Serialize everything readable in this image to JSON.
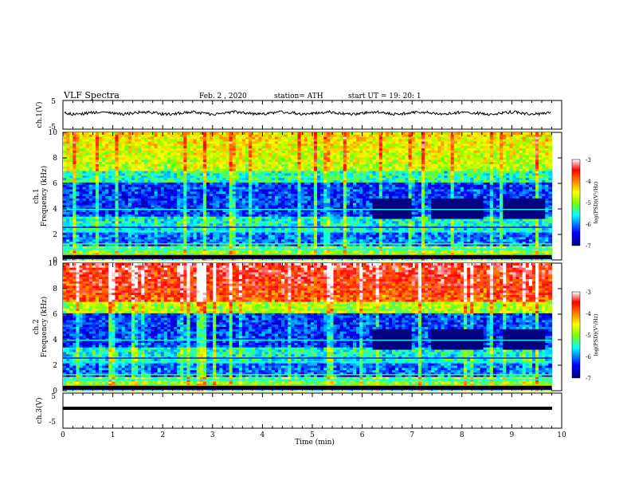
{
  "header": {
    "title": "VLF  Spectra",
    "date": "Feb. 2  , 2020",
    "station": "station= ATH",
    "start": "start  UT  =    19: 20: 1"
  },
  "chart_data": [
    {
      "type": "line",
      "panel": "ch1-waveform",
      "ylabel": "ch.1(V)",
      "ylim": [
        -5,
        5
      ],
      "yticks": [
        "5",
        "-5"
      ],
      "xlim": [
        0,
        10
      ],
      "series": [
        {
          "mean_v": 0.6,
          "noise_v": 0.6
        }
      ]
    },
    {
      "type": "heatmap",
      "panel": "ch1-spectrogram",
      "ylabel": "ch.1\nFrequency (kHz)",
      "ylim": [
        0,
        10
      ],
      "yticks": [
        "0",
        "2",
        "4",
        "6",
        "8",
        "10"
      ],
      "xlim": [
        0,
        9.8
      ],
      "colorbar": {
        "label": "log(PSD)(V²/Hz)",
        "range": [
          -7,
          -3
        ],
        "ticks": [
          "-3",
          "-4",
          "-5",
          "-6",
          "-7"
        ]
      },
      "dark_blocks_min": [
        [
          6.2,
          7.0
        ],
        [
          7.4,
          8.4
        ],
        [
          8.8,
          9.7
        ]
      ]
    },
    {
      "type": "heatmap",
      "panel": "ch2-spectrogram",
      "ylabel": "ch.2\nFrequency (kHz)",
      "ylim": [
        0,
        10
      ],
      "yticks": [
        "0",
        "2",
        "4",
        "6",
        "8",
        "10"
      ],
      "xlim": [
        0,
        9.8
      ],
      "colorbar": {
        "label": "log(PSD)(V²/Hz)",
        "range": [
          -7,
          -3
        ],
        "ticks": [
          "-3",
          "-4",
          "-5",
          "-6",
          "-7"
        ]
      },
      "dark_blocks_min": [
        [
          6.2,
          7.0
        ],
        [
          7.4,
          8.4
        ],
        [
          8.8,
          9.7
        ]
      ]
    },
    {
      "type": "line",
      "panel": "ch3-waveform",
      "ylabel": "ch.3(V)",
      "ylim": [
        -5,
        5
      ],
      "yticks": [
        "5",
        "-5"
      ],
      "xlim": [
        0,
        10
      ],
      "series": [
        {
          "mean_v": -1.5,
          "noise_v": 0.1
        }
      ]
    }
  ],
  "xaxis": {
    "label": "Time  (min)",
    "ticks": [
      "0",
      "1",
      "2",
      "3",
      "4",
      "5",
      "6",
      "7",
      "8",
      "9",
      "10"
    ]
  },
  "colors": {
    "colormap": [
      "#000080",
      "#0000ff",
      "#00ffff",
      "#7fff00",
      "#ffff00",
      "#ff8000",
      "#ff0000",
      "#ffffff"
    ]
  }
}
